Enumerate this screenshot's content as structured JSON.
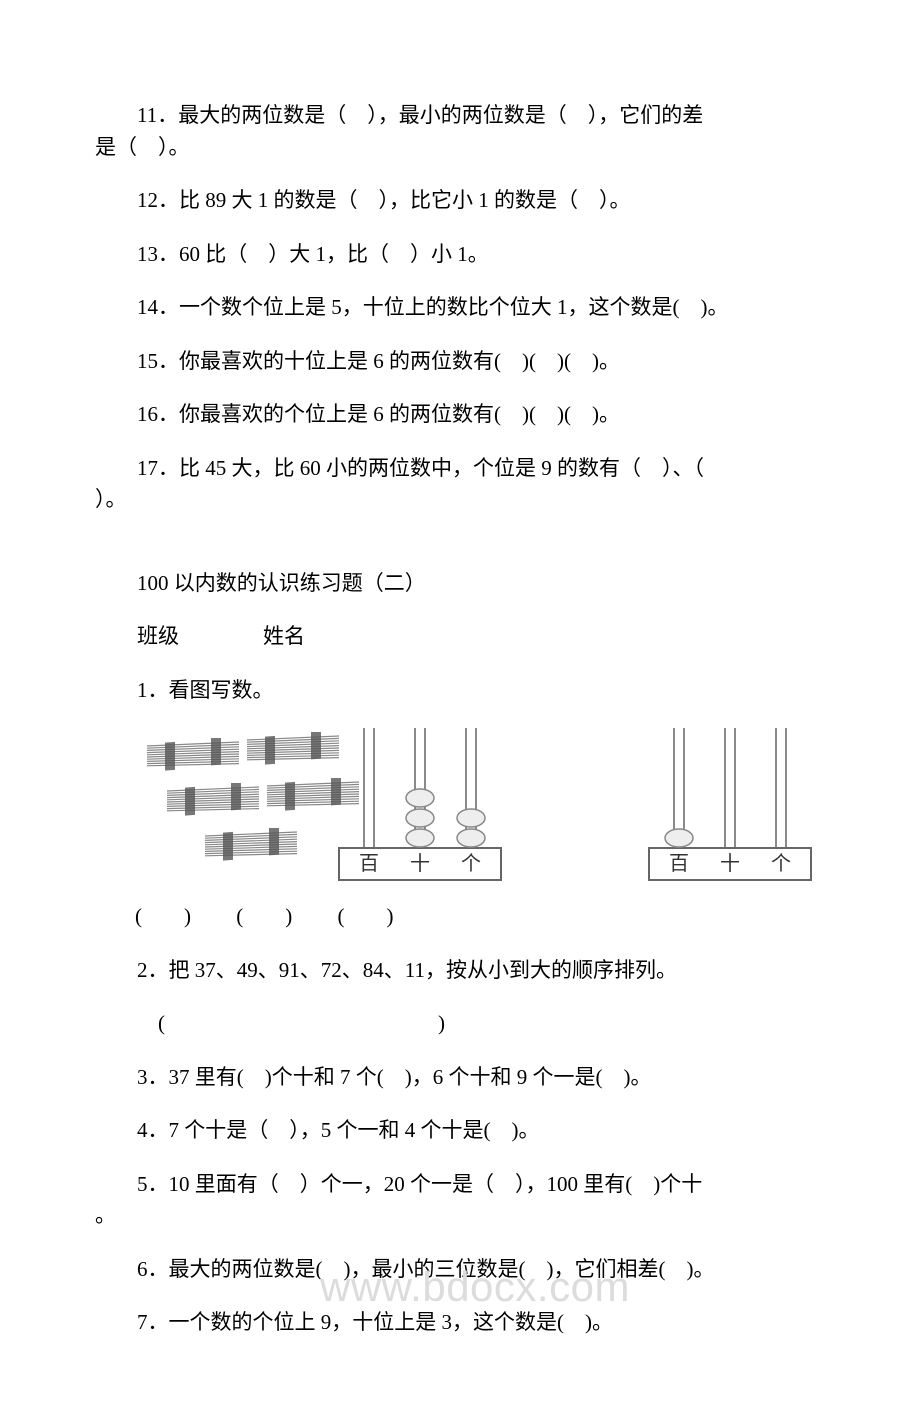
{
  "section1": {
    "q11_l1": "11．最大的两位数是（　），最小的两位数是（　），它们的差",
    "q11_l2": "是（　）。",
    "q12": "12．比 89 大 1 的数是（　），比它小 1 的数是（　）。",
    "q13": "13．60 比（　）大 1，比（　）小 1。",
    "q14": "14．一个数个位上是 5，十位上的数比个位大 1，这个数是(　)。",
    "q15": "15．你最喜欢的十位上是 6 的两位数有(　)(　)(　)。",
    "q16": "16．你最喜欢的个位上是 6 的两位数有(　)(　)(　)。",
    "q17_l1": "17．比 45 大，比 60 小的两位数中，个位是 9 的数有（　）、（",
    "q17_l2": "）。"
  },
  "section2": {
    "title": "100 以内数的认识练习题（二）",
    "header": "班级　　　　姓名",
    "q1": "1．看图写数。",
    "answers": {
      "a1": "(　　)",
      "a2": "(　　)",
      "a3": "(　　)"
    },
    "q2": "2．把 37、49、91、72、84、11，按从小到大的顺序排列。",
    "q2_blank": "(　　　　　　　　　　　　　)",
    "q3": "3．37 里有(　)个十和 7 个(　)，6 个十和 9 个一是(　)。",
    "q4": "4．7 个十是（　），5 个一和 4 个十是(　)。",
    "q5_l1": "5．10 里面有（　）个一，20 个一是（　），100 里有(　)个十",
    "q5_l2": "。",
    "q6": "6．最大的两位数是(　)，最小的三位数是(　)，它们相差(　)。",
    "q7": "7．一个数的个位上 9，十位上是 3，这个数是(　)。"
  },
  "watermark": "www.bdocx.com",
  "abacus": {
    "labels": {
      "bai": "百",
      "shi": "十",
      "ge": "个"
    },
    "colors": {
      "rod": "#8a8a8a",
      "frame": "#666666",
      "bead": "#eeeeee",
      "bead_stroke": "#888888",
      "text": "#333333",
      "box_bg": "#ffffff"
    },
    "fig1": {
      "beads": {
        "bai": 0,
        "shi": 3,
        "ge": 2
      }
    },
    "fig2": {
      "beads": {
        "bai": 1,
        "shi": 0,
        "ge": 0
      }
    }
  },
  "sticks": {
    "bundle_count": 5,
    "colors": {
      "stick": "#bfbfbf",
      "band": "#555555",
      "stroke": "#888888"
    }
  }
}
